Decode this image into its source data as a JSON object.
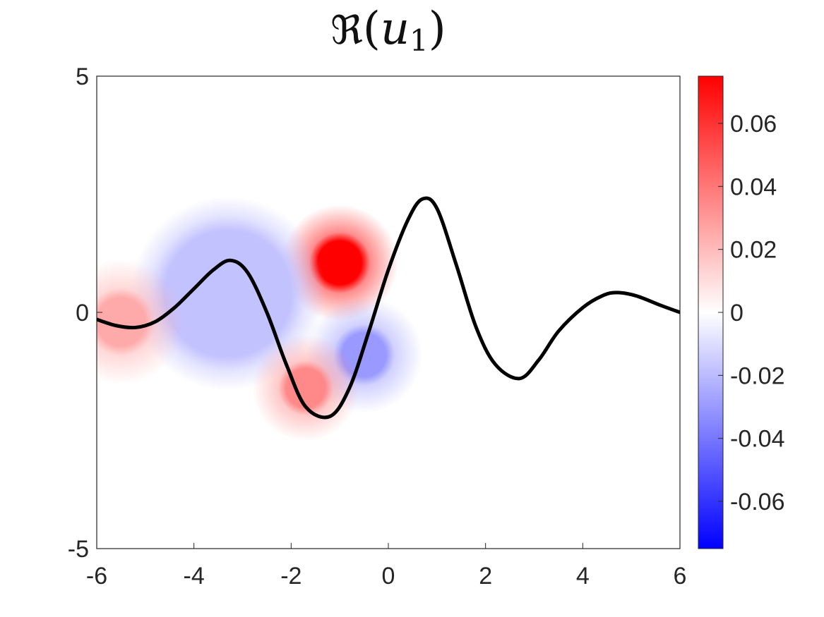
{
  "title": {
    "symbol": "ℜ",
    "open": "(",
    "var": "u",
    "sub": "1",
    "close": ")"
  },
  "chart_data": {
    "type": "heatmap",
    "title": "ℜ(u_1)",
    "xlabel": "",
    "ylabel": "",
    "xlim": [
      -6,
      6
    ],
    "ylim": [
      -5,
      5
    ],
    "xticks": [
      "-6",
      "-4",
      "-2",
      "0",
      "2",
      "4",
      "6"
    ],
    "yticks": [
      "-5",
      "0",
      "5"
    ],
    "colorbar": {
      "clim": [
        -0.075,
        0.075
      ],
      "ticks": [
        "0.06",
        "0.04",
        "0.02",
        "0",
        "-0.02",
        "-0.04",
        "-0.06"
      ],
      "tick_values": [
        0.06,
        0.04,
        0.02,
        0,
        -0.02,
        -0.04,
        -0.06
      ],
      "colormap": [
        "#0000ff",
        "#ffffff",
        "#ff0000"
      ]
    },
    "curve": {
      "color": "#000000",
      "points": [
        [
          -6.0,
          -0.15
        ],
        [
          -5.6,
          -0.28
        ],
        [
          -5.2,
          -0.32
        ],
        [
          -4.8,
          -0.2
        ],
        [
          -4.4,
          0.1
        ],
        [
          -4.0,
          0.5
        ],
        [
          -3.6,
          0.9
        ],
        [
          -3.25,
          1.1
        ],
        [
          -2.9,
          0.85
        ],
        [
          -2.5,
          0.0
        ],
        [
          -2.1,
          -1.1
        ],
        [
          -1.7,
          -2.0
        ],
        [
          -1.2,
          -2.2
        ],
        [
          -0.8,
          -1.6
        ],
        [
          -0.4,
          -0.4
        ],
        [
          0.0,
          0.9
        ],
        [
          0.4,
          1.95
        ],
        [
          0.7,
          2.4
        ],
        [
          1.0,
          2.2
        ],
        [
          1.4,
          1.0
        ],
        [
          1.8,
          -0.3
        ],
        [
          2.2,
          -1.1
        ],
        [
          2.7,
          -1.4
        ],
        [
          3.1,
          -1.0
        ],
        [
          3.5,
          -0.4
        ],
        [
          4.0,
          0.1
        ],
        [
          4.4,
          0.35
        ],
        [
          4.7,
          0.42
        ],
        [
          5.1,
          0.35
        ],
        [
          5.6,
          0.15
        ],
        [
          6.0,
          0.0
        ]
      ]
    },
    "blobs": [
      {
        "center": [
          -1.0,
          1.05
        ],
        "radius": 0.45,
        "halo": 1.2,
        "value": 0.075
      },
      {
        "center": [
          -3.3,
          0.4
        ],
        "radius": 1.3,
        "halo": 2.0,
        "value": -0.018
      },
      {
        "center": [
          -0.5,
          -0.9
        ],
        "radius": 0.45,
        "halo": 1.2,
        "value": -0.03
      },
      {
        "center": [
          -1.7,
          -1.6
        ],
        "radius": 0.4,
        "halo": 1.1,
        "value": 0.035
      },
      {
        "center": [
          -5.5,
          -0.2
        ],
        "radius": 0.5,
        "halo": 1.3,
        "value": 0.025
      }
    ]
  }
}
